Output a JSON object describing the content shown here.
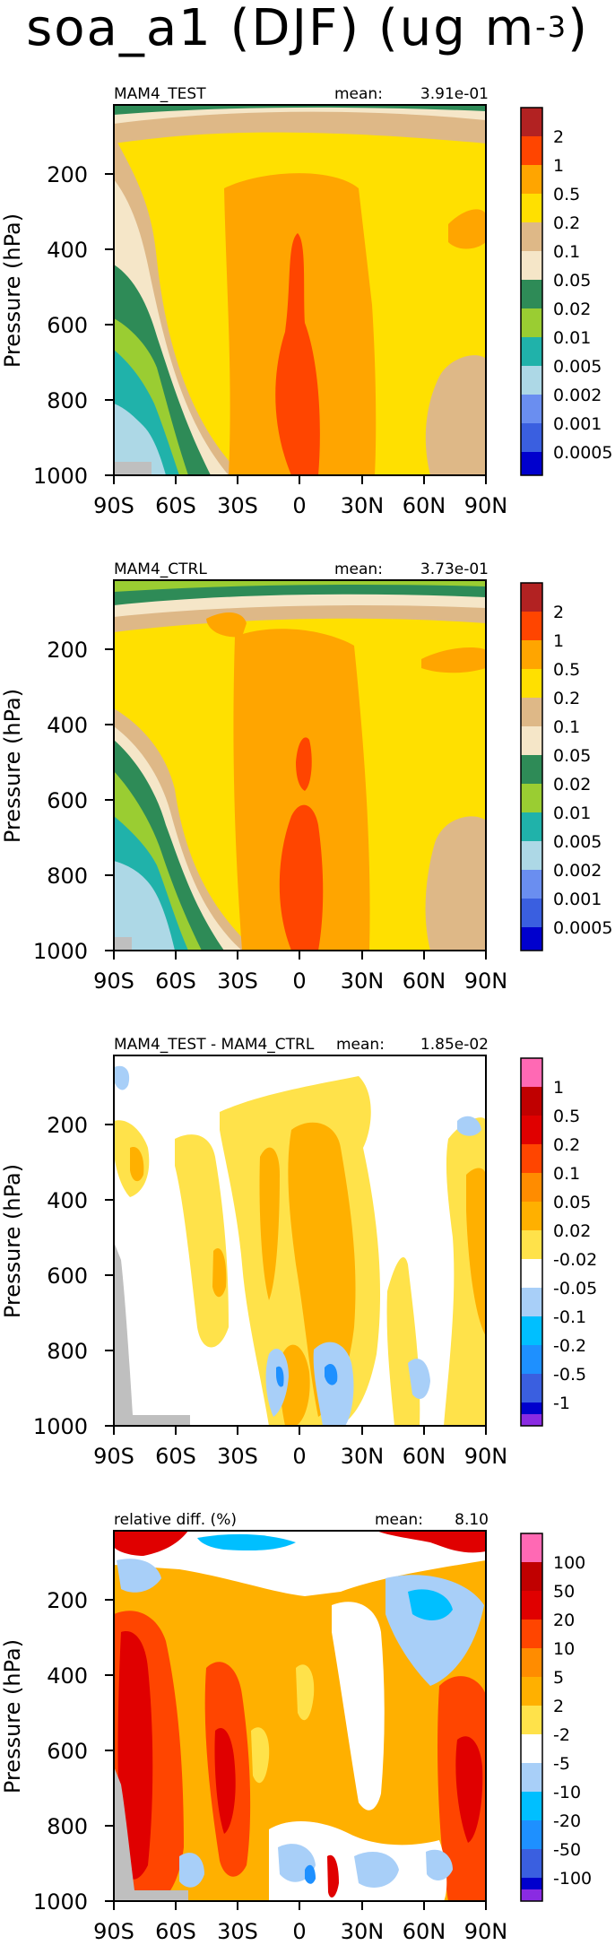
{
  "title": {
    "main": "soa_a1 (DJF) (ug m",
    "sup": "-3",
    "close": ")"
  },
  "axes": {
    "ylabel": "Pressure (hPa)",
    "yticks": [
      "200",
      "400",
      "600",
      "800",
      "1000"
    ],
    "xticks": [
      "90S",
      "60S",
      "30S",
      "0",
      "30N",
      "60N",
      "90N"
    ]
  },
  "colors": {
    "abs": [
      "#0000cd",
      "#3a5fe0",
      "#6a8ef0",
      "#add8e6",
      "#20b2aa",
      "#9acd32",
      "#2e8b57",
      "#f5e6c8",
      "#deb887",
      "#ffe000",
      "#ffa500",
      "#ff4500",
      "#b22222"
    ],
    "diff": [
      "#8a2be2",
      "#0000cd",
      "#3a5fe0",
      "#1e90ff",
      "#00bfff",
      "#a8cff8",
      "#ffffff",
      "#ffe24a",
      "#ffb000",
      "#ff8c00",
      "#ff4500",
      "#e00000",
      "#c00000",
      "#ff69b4"
    ]
  },
  "panels": [
    {
      "label": "MAM4_TEST",
      "mean_label": "mean:",
      "mean_value": "3.91e-01",
      "colorbar_labels": [
        "2",
        "1",
        "0.5",
        "0.2",
        "0.1",
        "0.05",
        "0.02",
        "0.01",
        "0.005",
        "0.002",
        "0.001",
        "0.0005"
      ]
    },
    {
      "label": "MAM4_CTRL",
      "mean_label": "mean:",
      "mean_value": "3.73e-01",
      "colorbar_labels": [
        "2",
        "1",
        "0.5",
        "0.2",
        "0.1",
        "0.05",
        "0.02",
        "0.01",
        "0.005",
        "0.002",
        "0.001",
        "0.0005"
      ]
    },
    {
      "label": "MAM4_TEST - MAM4_CTRL",
      "mean_label": "mean:",
      "mean_value": "1.85e-02",
      "colorbar_labels": [
        "1",
        "0.5",
        "0.2",
        "0.1",
        "0.05",
        "0.02",
        "-0.02",
        "-0.05",
        "-0.1",
        "-0.2",
        "-0.5",
        "-1"
      ]
    },
    {
      "label": "relative diff. (%)",
      "mean_label": "mean:",
      "mean_value": "8.10",
      "colorbar_labels": [
        "100",
        "50",
        "20",
        "10",
        "5",
        "2",
        "-2",
        "-5",
        "-10",
        "-20",
        "-50",
        "-100"
      ]
    }
  ],
  "chart_data": [
    {
      "type": "heatmap",
      "title": "MAM4_TEST",
      "mean": 0.391,
      "xlabel": "",
      "ylabel": "Pressure (hPa)",
      "x": [
        "90S",
        "60S",
        "30S",
        "0",
        "30N",
        "60N",
        "90N"
      ],
      "ylim": [
        1000,
        0
      ],
      "contour_levels": [
        0.0005,
        0.001,
        0.002,
        0.005,
        0.01,
        0.02,
        0.05,
        0.1,
        0.2,
        0.5,
        1,
        2
      ],
      "features": [
        "values 0.2-0.5 over most of domain",
        "max 1-2 near equator 500-900 hPa",
        "low 0.001-0.02 near 90S-60S below 450 hPa",
        "missing data near 90S-60S surface"
      ]
    },
    {
      "type": "heatmap",
      "title": "MAM4_CTRL",
      "mean": 0.373,
      "xlabel": "",
      "ylabel": "Pressure (hPa)",
      "x": [
        "90S",
        "60S",
        "30S",
        "0",
        "30N",
        "60N",
        "90N"
      ],
      "ylim": [
        1000,
        0
      ],
      "contour_levels": [
        0.0005,
        0.001,
        0.002,
        0.005,
        0.01,
        0.02,
        0.05,
        0.1,
        0.2,
        0.5,
        1,
        2
      ],
      "features": [
        "values 0.2-0.5 over most of domain",
        "max 1-2 near equator 550-950 hPa",
        "low 0.001-0.02 near 90S-60S below 400 hPa"
      ]
    },
    {
      "type": "heatmap",
      "title": "MAM4_TEST - MAM4_CTRL",
      "mean": 0.0185,
      "xlabel": "",
      "ylabel": "Pressure (hPa)",
      "x": [
        "90S",
        "60S",
        "30S",
        "0",
        "30N",
        "60N",
        "90N"
      ],
      "ylim": [
        1000,
        0
      ],
      "contour_levels": [
        -1,
        -0.5,
        -0.2,
        -0.1,
        -0.05,
        -0.02,
        0.02,
        0.05,
        0.1,
        0.2,
        0.5,
        1
      ],
      "features": [
        "mostly 0.02-0.1 positive differences",
        "small negative -0.02 to -0.2 near 0-30N below 750 hPa"
      ]
    },
    {
      "type": "heatmap",
      "title": "relative diff. (%)",
      "mean": 8.1,
      "xlabel": "",
      "ylabel": "Pressure (hPa)",
      "x": [
        "90S",
        "60S",
        "30S",
        "0",
        "30N",
        "60N",
        "90N"
      ],
      "ylim": [
        1000,
        0
      ],
      "contour_levels": [
        -100,
        -50,
        -20,
        -10,
        -5,
        -2,
        2,
        5,
        10,
        20,
        50,
        100
      ],
      "features": [
        "positive 10-50% over southern hemisphere",
        "mixed 2-20% tropics",
        "negative -2 to -20% patches near 60N upper levels and near surface"
      ]
    }
  ]
}
